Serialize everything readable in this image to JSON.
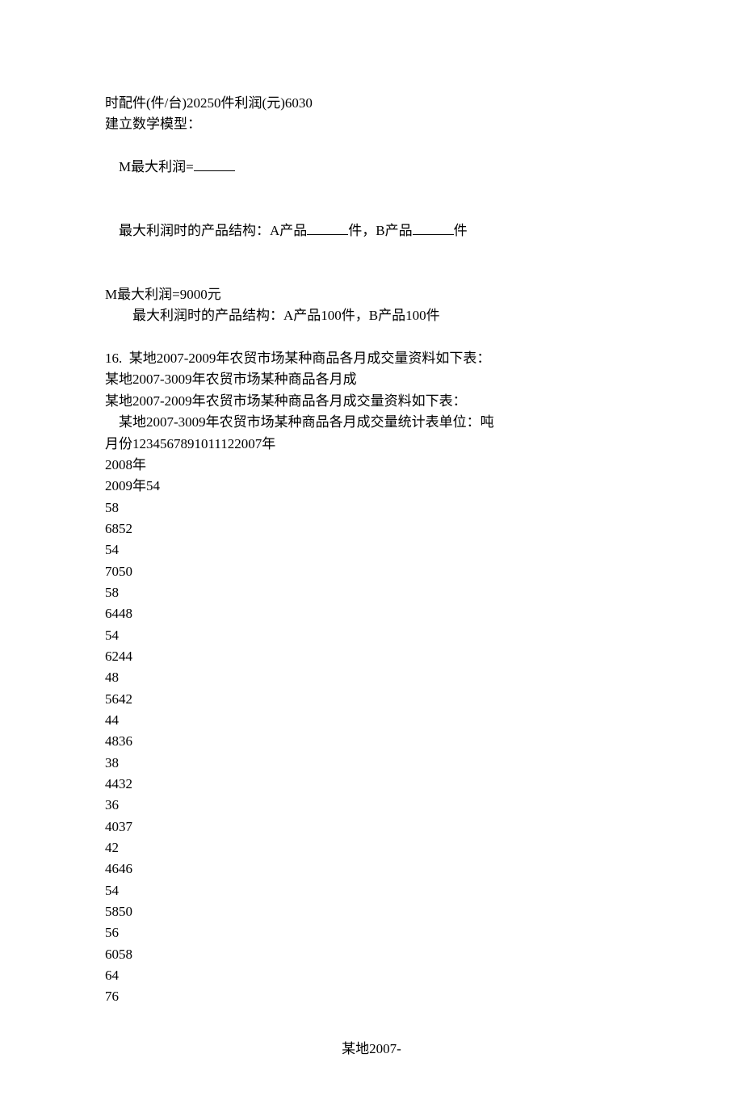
{
  "doc": {
    "background": "#ffffff",
    "textColor": "#000000",
    "fontSizePt": 12,
    "l1": "时配件(件/台)20250件利润(元)6030",
    "l2": "建立数学模型：",
    "l3a": "M最大利润=",
    "l4a": "最大利润时的产品结构：A产品",
    "l4b": "件，B产品",
    "l4c": "件",
    "l5": "M最大利润=9000元",
    "l6": "最大利润时的产品结构：A产品100件，B产品100件",
    "l7": "16.  某地2007-2009年农贸市场某种商品各月成交量资料如下表：",
    "l8": "某地2007-3009年农贸市场某种商品各月成",
    "l9": "某地2007-2009年农贸市场某种商品各月成交量资料如下表：",
    "l10": "某地2007-3009年农贸市场某种商品各月成交量统计表单位：吨",
    "l11": "月份1234567891011122007年",
    "l12": "2008年",
    "l13": "2009年54",
    "values": [
      "58",
      "6852",
      "54",
      "7050",
      "58",
      "6448",
      "54",
      "6244",
      "48",
      "5642",
      "44",
      "4836",
      "38",
      "4432",
      "36",
      "4037",
      "42",
      "4646",
      "54",
      "5850",
      "56",
      "6058",
      "64",
      "76"
    ],
    "footer": "某地2007-"
  }
}
